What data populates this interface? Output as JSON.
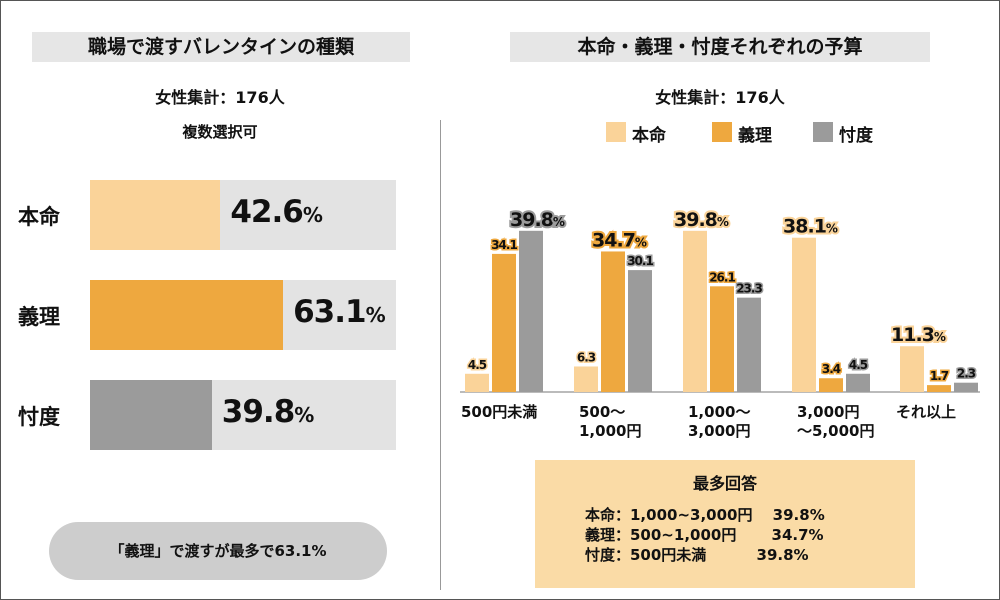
{
  "left": {
    "title": "職場で渡すバレンタインの種類",
    "sample": "女性集計：176人",
    "note": "複数選択可",
    "conclusion": "「義理」で渡すが最多で63.1%"
  },
  "right": {
    "title": "本命・義理・忖度それぞれの予算",
    "sample": "女性集計：176人"
  },
  "colors": {
    "honmei": "#fad399",
    "giri": "#eea83f",
    "sontaku": "#9b9b9b",
    "track": "#e3e3e3"
  },
  "summary": {
    "title": "最多回答",
    "lines": [
      "本命：1,000~3,000円　 39.8%",
      "義理：500~1,000円　　 34.7%",
      "忖度：500円未満　　　 39.8%"
    ]
  },
  "chart_data": [
    {
      "type": "bar",
      "orientation": "horizontal",
      "title": "職場で渡すバレンタインの種類",
      "categories": [
        "本命",
        "義理",
        "忖度"
      ],
      "values": [
        42.6,
        63.1,
        39.8
      ],
      "value_labels": [
        "42.6",
        "63.1",
        "39.8"
      ],
      "unit": "%",
      "xlim": [
        0,
        100
      ]
    },
    {
      "type": "bar",
      "title": "本命・義理・忖度それぞれの予算",
      "categories": [
        "500円未満",
        "500〜\n1,000円",
        "1,000〜\n3,000円",
        "3,000円\n〜5,000円",
        "それ以上"
      ],
      "legend": [
        "本命",
        "義理",
        "忖度"
      ],
      "series": [
        {
          "name": "本命",
          "values": [
            4.5,
            6.3,
            39.8,
            38.1,
            11.3
          ]
        },
        {
          "name": "義理",
          "values": [
            34.1,
            34.7,
            26.1,
            3.4,
            1.7
          ]
        },
        {
          "name": "忖度",
          "values": [
            39.8,
            30.1,
            23.3,
            4.5,
            2.3
          ]
        }
      ],
      "highlighted_labels": [
        "39.8",
        "34.7",
        "39.8",
        "38.1",
        "11.3"
      ],
      "ylim": [
        0,
        45
      ]
    }
  ]
}
